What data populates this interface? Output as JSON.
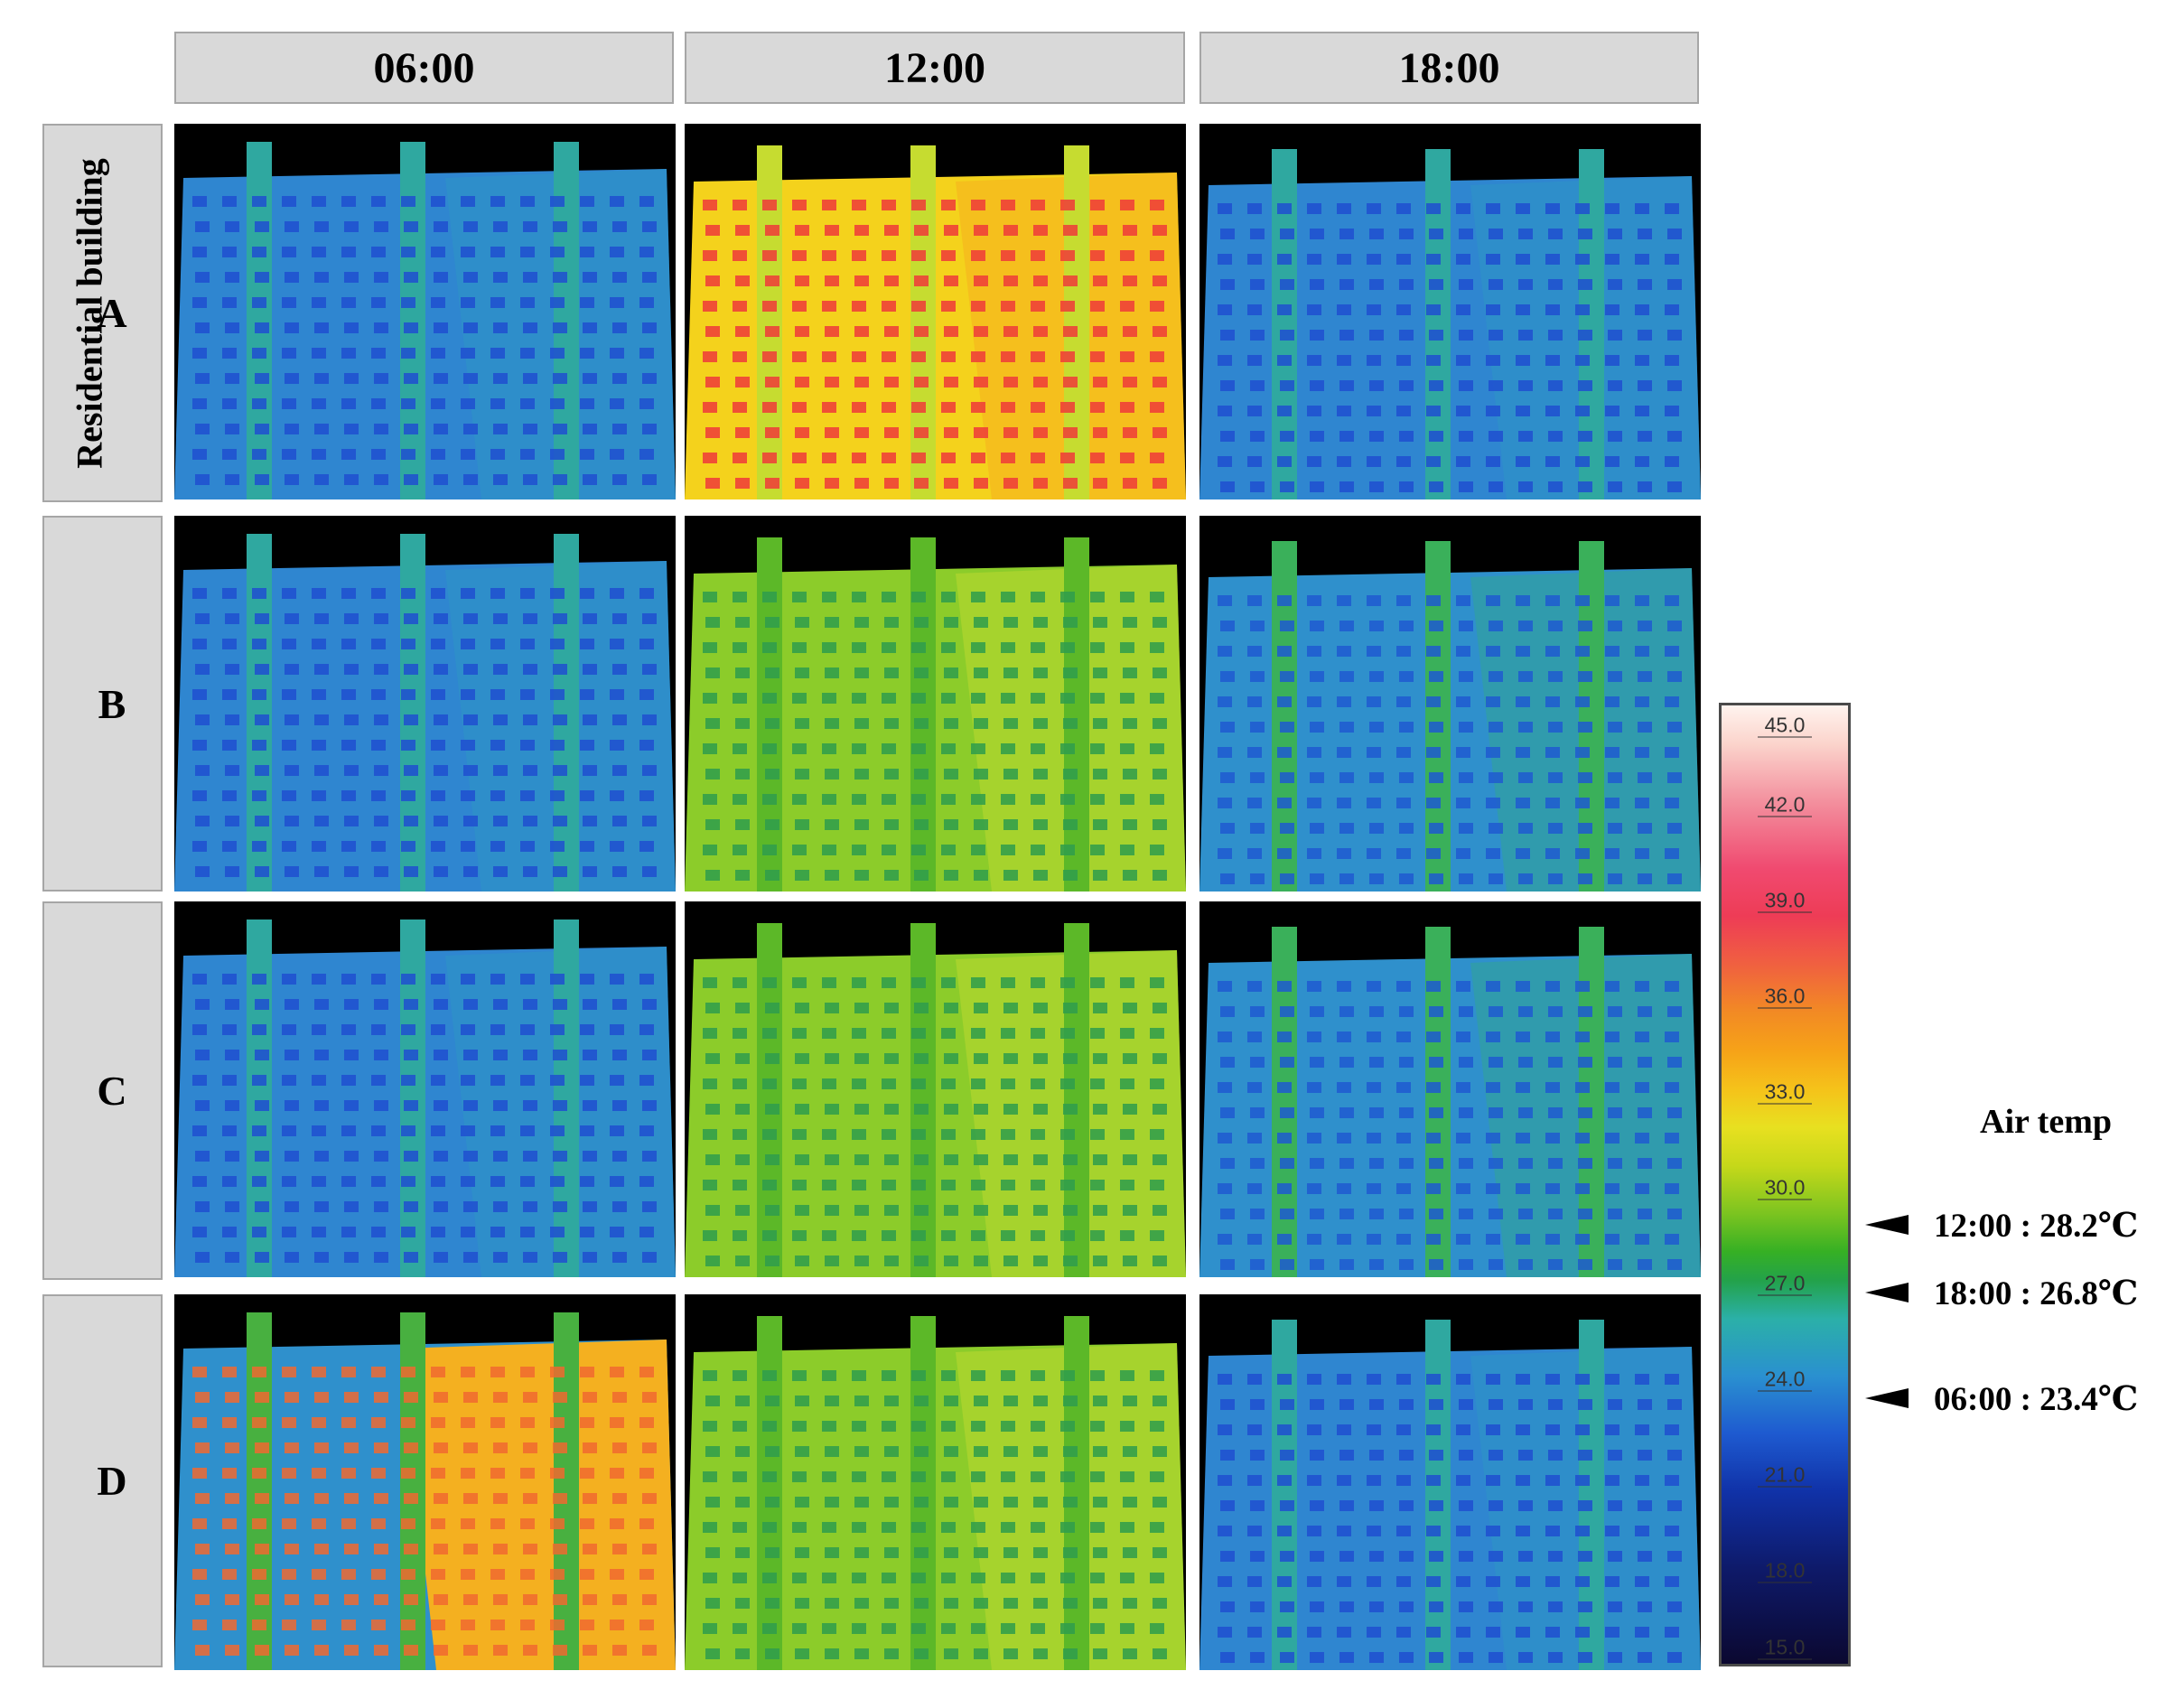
{
  "columns": [
    "06:00",
    "12:00",
    "18:00"
  ],
  "row_title": "Residential building",
  "rows": [
    "A",
    "B",
    "C",
    "D"
  ],
  "color_scale": {
    "ticks": [
      "45.0",
      "42.0",
      "39.0",
      "36.0",
      "33.0",
      "30.0",
      "27.0",
      "24.0",
      "21.0",
      "18.0",
      "15.0"
    ]
  },
  "air_temp": {
    "title": "Air temp",
    "markers": [
      {
        "label": "12:00 : 28.2℃",
        "value": 28.2
      },
      {
        "label": "18:00 : 26.8℃",
        "value": 26.8
      },
      {
        "label": "06:00 : 23.4℃",
        "value": 23.4
      }
    ]
  },
  "colors": {
    "cool": "#2f86d0",
    "mild": "#7ccc2c",
    "warm": "#f4d21c",
    "hot": "#ee3a3a"
  }
}
